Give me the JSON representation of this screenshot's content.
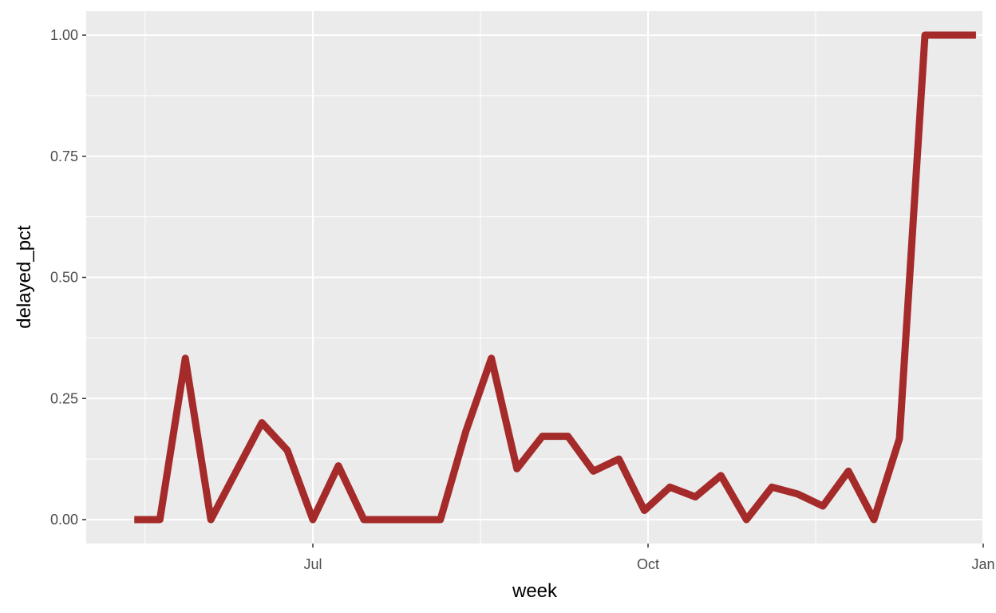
{
  "chart_data": {
    "type": "line",
    "xlabel": "week",
    "ylabel": "delayed_pct",
    "x_ticks": [
      "Jul",
      "Oct",
      "Jan"
    ],
    "y_ticks": [
      "0.00",
      "0.25",
      "0.50",
      "0.75",
      "1.00"
    ],
    "ylim": [
      -0.05,
      1.05
    ],
    "grid": true,
    "legend": "none",
    "panel_color": "#ebebeb",
    "grid_color": "#ffffff",
    "line_color": "#a52a2a",
    "series": [
      {
        "x": [
          "2019-05-13",
          "2019-05-20",
          "2019-05-27",
          "2019-06-03",
          "2019-06-10",
          "2019-06-17",
          "2019-06-24",
          "2019-07-01",
          "2019-07-08",
          "2019-07-15",
          "2019-07-22",
          "2019-07-29",
          "2019-08-05",
          "2019-08-12",
          "2019-08-19",
          "2019-08-26",
          "2019-09-02",
          "2019-09-09",
          "2019-09-16",
          "2019-09-23",
          "2019-09-30",
          "2019-10-07",
          "2019-10-14",
          "2019-10-21",
          "2019-10-28",
          "2019-11-04",
          "2019-11-11",
          "2019-11-18",
          "2019-11-25",
          "2019-12-02",
          "2019-12-09",
          "2019-12-16",
          "2019-12-23",
          "2019-12-30"
        ],
        "values": [
          0.0,
          0.0,
          0.333,
          0.0,
          0.1,
          0.2,
          0.143,
          0.0,
          0.111,
          0.0,
          0.0,
          0.0,
          0.0,
          0.182,
          0.333,
          0.105,
          0.172,
          0.172,
          0.1,
          0.125,
          0.019,
          0.067,
          0.047,
          0.091,
          0.0,
          0.067,
          0.053,
          0.028,
          0.1,
          0.0,
          0.167,
          1.0,
          1.0,
          1.0
        ]
      }
    ]
  }
}
